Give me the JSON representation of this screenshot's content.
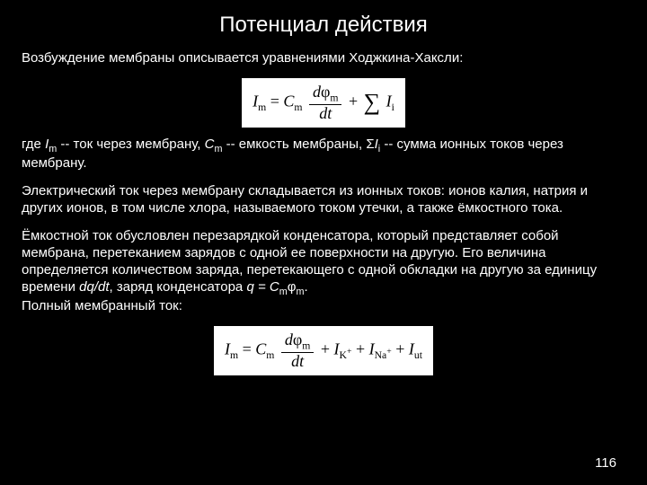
{
  "title": "Потенциал действия",
  "intro": "Возбуждение мембраны описывается уравнениями Ходжкина-Хаксли:",
  "eq1": {
    "lhs_symbol": "I",
    "lhs_sub": "m",
    "term1_symbol": "C",
    "term1_sub": "m",
    "frac_num_d": "d",
    "frac_num_phi": "φ",
    "frac_num_sub": "m",
    "frac_den": "dt",
    "sum_symbol": "∑",
    "sum_term_symbol": "I",
    "sum_term_sub": "i",
    "plus": "+",
    "eq": "="
  },
  "where": {
    "pre": "где ",
    "Im_sym": "I",
    "Im_sub": "m",
    "Im_txt": " -- ток через мембрану, ",
    "Cm_sym": "C",
    "Cm_sub": "m",
    "Cm_txt": " -- емкость мембраны, Σ",
    "Ii_sym": "I",
    "Ii_sub": "i",
    "Ii_txt": " -- сумма ионных токов через мембрану."
  },
  "para2": "Электрический ток через мембрану складывается из ионных токов: ионов калия, натрия и других ионов, в том числе хлора, называемого током утечки, а также ёмкостного тока.",
  "para3": {
    "text1": "Ёмкостной ток обусловлен перезарядкой конденсатора, который представляет собой мембрана, перетеканием зарядов с одной ее поверхности на другую. Его величина определяется количеством заряда, перетекающего с одной обкладки на другую за единицу времени ",
    "dqdt": "dq/dt",
    "text2": ", заряд конденсатора ",
    "q": "q = C",
    "q_sub": "m",
    "phi": "φ",
    "phi_sub": "m",
    "dot": "."
  },
  "para4": "Полный мембранный ток:",
  "eq2": {
    "lhs_symbol": "I",
    "lhs_sub": "m",
    "term1_symbol": "C",
    "term1_sub": "m",
    "frac_num_d": "d",
    "frac_num_phi": "φ",
    "frac_num_sub": "m",
    "frac_den": "dt",
    "t2_sym": "I",
    "t2_sub": "K",
    "t3_sym": "I",
    "t3_sub": "Na",
    "t4_sym": "I",
    "t4_sub": "ut",
    "plus": "+",
    "supplus": "+",
    "eq": "="
  },
  "page_number": "116"
}
